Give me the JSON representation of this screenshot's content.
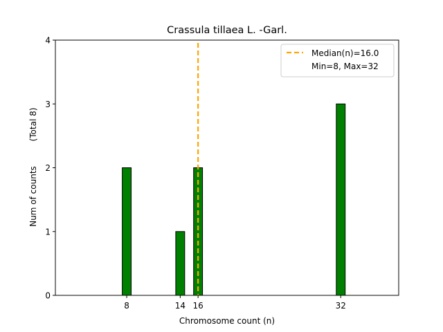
{
  "chart_data": {
    "type": "bar",
    "title": "Crassula tillaea L. -Garl.",
    "xlabel": "Chromosome count (n)",
    "ylabel": "Num of counts",
    "ylabel_total": "(Total 8)",
    "x": [
      8,
      14,
      16,
      32
    ],
    "values": [
      2,
      1,
      2,
      3
    ],
    "x_ticks": [
      "8",
      "14",
      "16",
      "32"
    ],
    "y_ticks": [
      "0",
      "1",
      "2",
      "3",
      "4"
    ],
    "xlim": [
      0,
      38.5
    ],
    "ylim": [
      0,
      4
    ],
    "bar_color": "#008000",
    "bar_edge_color": "#000000",
    "median_line": {
      "x": 16.0,
      "color": "#ffa500",
      "style": "dashed"
    },
    "legend": {
      "position": "top-right",
      "entries": [
        "Median(n)=16.0",
        "Min=8, Max=32"
      ]
    },
    "grid": false
  }
}
